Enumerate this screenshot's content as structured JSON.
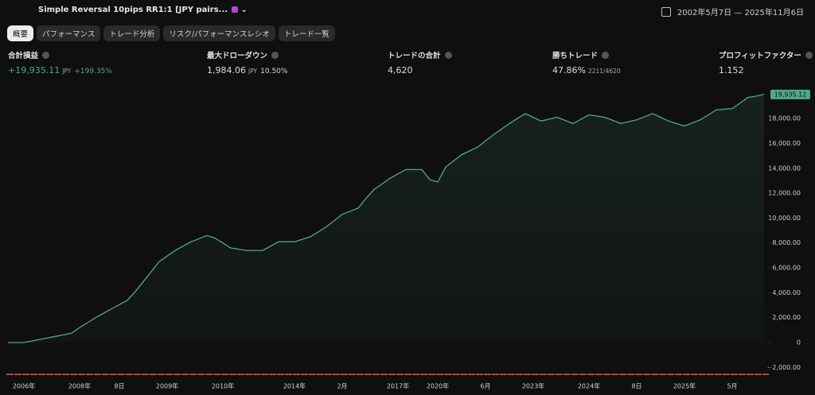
{
  "header": {
    "title": "Simple Reversal 10pips RR1:1 [JPY pairs...",
    "date_range": "2002年5月7日 — 2025年11月6日"
  },
  "tabs": [
    "概要",
    "パフォーマンス",
    "トレード分析",
    "リスク/パフォーマンスレシオ",
    "トレード一覧"
  ],
  "active_tab": 0,
  "stats": [
    {
      "label": "合計損益",
      "value": "+19,935.11",
      "unit": "JPY",
      "extra": "+199.35%",
      "color": "#4ea88f"
    },
    {
      "label": "最大ドローダウン",
      "value": "1,984.06",
      "unit": "JPY",
      "extra": "10.50%"
    },
    {
      "label": "トレードの合計",
      "value": "4,620"
    },
    {
      "label": "勝ちトレード",
      "value": "47.86%",
      "extra": "2211/4620"
    },
    {
      "label": "プロフィットファクター",
      "value": "1.152"
    }
  ],
  "chart_data": {
    "type": "line",
    "area": true,
    "categories": [
      null,
      null,
      "2006年",
      null,
      null,
      null,
      null,
      null,
      null,
      "2008年",
      null,
      null,
      null,
      null,
      "8日",
      null,
      null,
      null,
      null,
      null,
      "2009年",
      null,
      null,
      null,
      null,
      null,
      null,
      "2010年",
      null,
      null,
      null,
      null,
      null,
      null,
      null,
      null,
      "2014年",
      null,
      null,
      null,
      null,
      null,
      "2月",
      null,
      null,
      null,
      null,
      null,
      null,
      "2017年",
      null,
      null,
      null,
      null,
      "2020年",
      null,
      null,
      null,
      null,
      null,
      "6月",
      null,
      null,
      null,
      null,
      null,
      "2023年",
      null,
      null,
      null,
      null,
      null,
      null,
      "2024年",
      null,
      null,
      null,
      null,
      null,
      "8日",
      null,
      null,
      null,
      null,
      null,
      "2025年",
      null,
      null,
      null,
      null,
      null,
      "5月",
      null,
      null,
      null,
      null
    ],
    "series": [
      {
        "color": "#4ea88f",
        "values": [
          0,
          0,
          0,
          120,
          250,
          380,
          500,
          630,
          760,
          1200,
          1600,
          2000,
          2350,
          2700,
          3050,
          3400,
          4100,
          4900,
          5700,
          6500,
          6950,
          7400,
          7750,
          8100,
          8350,
          8600,
          8400,
          8000,
          7600,
          7500,
          7400,
          7400,
          7400,
          7750,
          8100,
          8100,
          8100,
          8300,
          8500,
          8900,
          9300,
          9800,
          10300,
          10550,
          10800,
          11600,
          12300,
          12750,
          13200,
          13550,
          13900,
          13900,
          13900,
          13100,
          12900,
          14100,
          14600,
          15100,
          15400,
          15700,
          16200,
          16700,
          17150,
          17600,
          18000,
          18400,
          18100,
          17800,
          17950,
          18100,
          17850,
          17600,
          17950,
          18300,
          18200,
          18100,
          17850,
          17600,
          17750,
          17900,
          18150,
          18400,
          18100,
          17800,
          17600,
          17400,
          17650,
          17900,
          18300,
          18700,
          18750,
          18800,
          19250,
          19700,
          19800,
          19935.12
        ]
      }
    ],
    "current_label": {
      "value": 19935.12,
      "label": "19,935.12"
    },
    "ylim": [
      -3000,
      20500
    ],
    "yticks": [
      {
        "value": -2000,
        "label": "−2,000.00"
      },
      0,
      {
        "value": 2000,
        "label": "2,000.00"
      },
      {
        "value": 4000,
        "label": "4,000.00"
      },
      {
        "value": 6000,
        "label": "6,000.00"
      },
      {
        "value": 8000,
        "label": "8,000.00"
      },
      {
        "value": 10000,
        "label": "10,000.00"
      },
      {
        "value": 12000,
        "label": "12,000.00"
      },
      {
        "value": 14000,
        "label": "14,000.00"
      },
      {
        "value": 16000,
        "label": "16,000.00"
      },
      {
        "value": 18000,
        "label": "18,000.00"
      }
    ]
  }
}
